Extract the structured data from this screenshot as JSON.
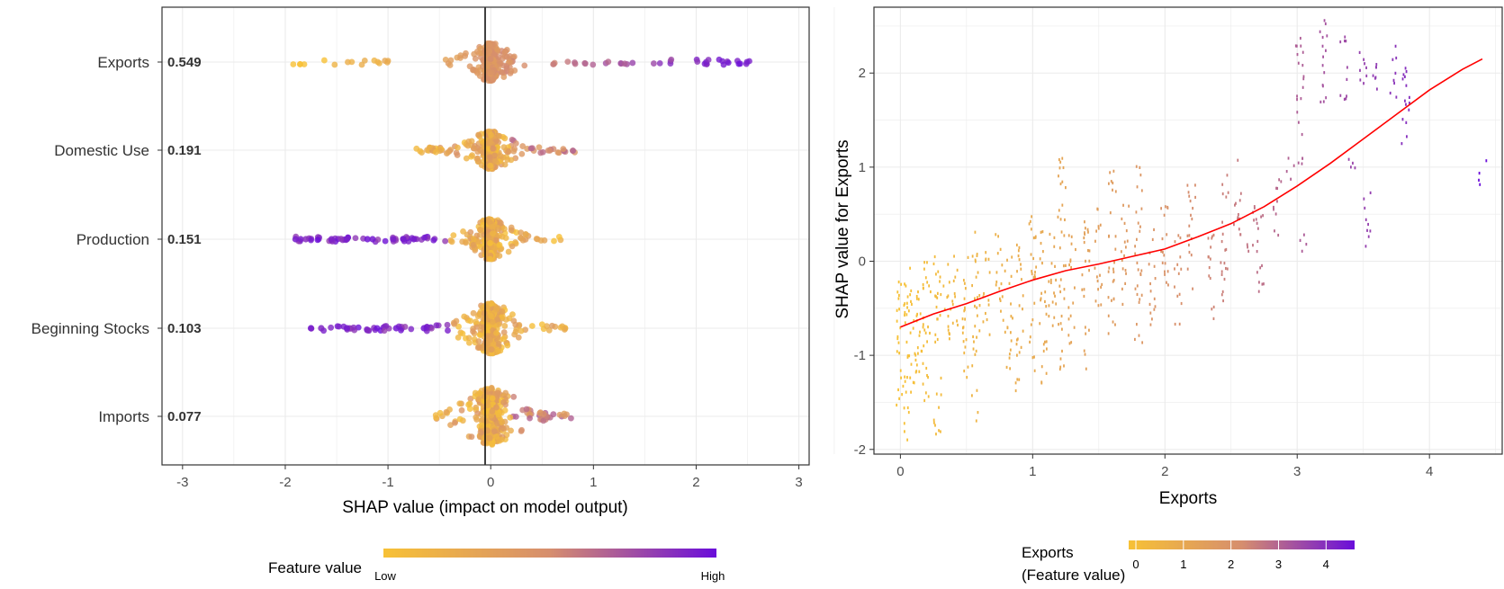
{
  "chart_data": [
    {
      "type": "scatter",
      "subtype": "shap-summary-beeswarm",
      "xlabel": "SHAP value (impact on model output)",
      "xlim": [
        -3,
        3
      ],
      "xticks": [
        "-3",
        "-2",
        "-1",
        "0",
        "1",
        "2",
        "3"
      ],
      "features": [
        {
          "name": "Exports",
          "importance": "0.549",
          "min": -1.95,
          "max": 2.6,
          "low_side": "negative",
          "spread": 1.0
        },
        {
          "name": "Domestic Use",
          "importance": "0.191",
          "min": -0.75,
          "max": 0.82,
          "low_side": "mixed",
          "spread": 1.0
        },
        {
          "name": "Production",
          "importance": "0.151",
          "min": -1.9,
          "max": 0.7,
          "low_side": "positive",
          "spread": 1.1
        },
        {
          "name": "Beginning Stocks",
          "importance": "0.103",
          "min": -1.75,
          "max": 0.82,
          "low_side": "positive",
          "spread": 1.4
        },
        {
          "name": "Imports",
          "importance": "0.077",
          "min": -0.55,
          "max": 0.8,
          "low_side": "mixed",
          "spread": 2.0
        }
      ],
      "outliers": {
        "Production": [
          -1.9,
          -1.85,
          -1.8,
          -1.55,
          -1.4,
          -1.2,
          -1.15,
          -0.95,
          -0.85,
          -0.75
        ],
        "Beginning Stocks": [
          -1.75,
          -1.65,
          -1.4,
          -0.92,
          -0.65
        ]
      },
      "legend": {
        "title": "Feature value",
        "low": "Low",
        "high": "High",
        "placement": "bottom"
      },
      "colors": {
        "low": "#f7c136",
        "mid": "#d68e6e",
        "high": "#6a0dda"
      },
      "grid": true
    },
    {
      "type": "scatter",
      "subtype": "shap-dependence",
      "xlabel": "Exports",
      "ylabel": "SHAP value for Exports",
      "xlim": [
        -0.2,
        4.55
      ],
      "ylim": [
        -2.05,
        2.7
      ],
      "xticks": [
        "0",
        "1",
        "2",
        "3",
        "4"
      ],
      "yticks": [
        "-2",
        "-1",
        "0",
        "1",
        "2"
      ],
      "trend": {
        "x": [
          0,
          0.25,
          0.5,
          0.75,
          1.0,
          1.25,
          1.5,
          1.75,
          2.0,
          2.25,
          2.5,
          2.75,
          3.0,
          3.25,
          3.5,
          3.75,
          4.0,
          4.25,
          4.4
        ],
        "y": [
          -0.7,
          -0.56,
          -0.45,
          -0.32,
          -0.2,
          -0.1,
          -0.03,
          0.05,
          0.13,
          0.26,
          0.4,
          0.58,
          0.8,
          1.04,
          1.3,
          1.56,
          1.82,
          2.04,
          2.15
        ],
        "color": "#ff0000"
      },
      "clusters": [
        {
          "x": 0.0,
          "ymin": -1.6,
          "ymax": 0.0
        },
        {
          "x": 0.05,
          "ymin": -1.9,
          "ymax": 0.05
        },
        {
          "x": 0.1,
          "ymin": -1.4,
          "ymax": 0.05
        },
        {
          "x": 0.15,
          "ymin": -1.2,
          "ymax": 0.05
        },
        {
          "x": 0.2,
          "ymin": -1.5,
          "ymax": 0.0
        },
        {
          "x": 0.28,
          "ymin": -1.9,
          "ymax": 0.08
        },
        {
          "x": 0.35,
          "ymin": -0.9,
          "ymax": 0.05
        },
        {
          "x": 0.42,
          "ymin": -0.7,
          "ymax": 0.1
        },
        {
          "x": 0.5,
          "ymin": -1.3,
          "ymax": 0.1
        },
        {
          "x": 0.57,
          "ymin": -1.7,
          "ymax": 0.35
        },
        {
          "x": 0.65,
          "ymin": -0.8,
          "ymax": 0.1
        },
        {
          "x": 0.75,
          "ymin": -0.8,
          "ymax": 0.3
        },
        {
          "x": 0.82,
          "ymin": -1.2,
          "ymax": 0.1
        },
        {
          "x": 0.9,
          "ymin": -1.4,
          "ymax": 0.25
        },
        {
          "x": 1.0,
          "ymin": -1.2,
          "ymax": 0.5
        },
        {
          "x": 1.08,
          "ymin": -1.3,
          "ymax": 0.35
        },
        {
          "x": 1.15,
          "ymin": -0.9,
          "ymax": 0.3
        },
        {
          "x": 1.22,
          "ymin": -1.2,
          "ymax": 1.15
        },
        {
          "x": 1.3,
          "ymin": -0.9,
          "ymax": 0.3
        },
        {
          "x": 1.4,
          "ymin": -1.2,
          "ymax": 0.45
        },
        {
          "x": 1.5,
          "ymin": -0.6,
          "ymax": 0.6
        },
        {
          "x": 1.6,
          "ymin": -0.9,
          "ymax": 1.0
        },
        {
          "x": 1.7,
          "ymin": -0.6,
          "ymax": 0.6
        },
        {
          "x": 1.8,
          "ymin": -0.9,
          "ymax": 1.1
        },
        {
          "x": 1.9,
          "ymin": -0.7,
          "ymax": 0.4
        },
        {
          "x": 2.0,
          "ymin": -0.5,
          "ymax": 0.7
        },
        {
          "x": 2.1,
          "ymin": -0.7,
          "ymax": 0.3
        },
        {
          "x": 2.2,
          "ymin": -0.4,
          "ymax": 0.85
        },
        {
          "x": 2.35,
          "ymin": -0.7,
          "ymax": 0.3
        },
        {
          "x": 2.45,
          "ymin": -0.5,
          "ymax": 0.95
        },
        {
          "x": 2.55,
          "ymin": 0.2,
          "ymax": 1.15
        },
        {
          "x": 2.65,
          "ymin": 0.1,
          "ymax": 0.7
        },
        {
          "x": 2.72,
          "ymin": -0.4,
          "ymax": 0.6
        },
        {
          "x": 2.85,
          "ymin": 0.2,
          "ymax": 0.9
        },
        {
          "x": 2.95,
          "ymin": 0.8,
          "ymax": 1.1
        },
        {
          "x": 3.02,
          "ymin": 0.95,
          "ymax": 2.45
        },
        {
          "x": 3.05,
          "ymin": 0.1,
          "ymax": 0.3
        },
        {
          "x": 3.2,
          "ymin": 1.5,
          "ymax": 2.6
        },
        {
          "x": 3.35,
          "ymin": 1.7,
          "ymax": 2.4
        },
        {
          "x": 3.42,
          "ymin": 0.9,
          "ymax": 1.1
        },
        {
          "x": 3.5,
          "ymin": 1.7,
          "ymax": 2.3
        },
        {
          "x": 3.53,
          "ymin": 0.15,
          "ymax": 0.8
        },
        {
          "x": 3.6,
          "ymin": 1.8,
          "ymax": 2.3
        },
        {
          "x": 3.72,
          "ymin": 1.7,
          "ymax": 2.3
        },
        {
          "x": 3.82,
          "ymin": 1.25,
          "ymax": 2.3
        },
        {
          "x": 4.4,
          "ymin": 0.8,
          "ymax": 1.1
        }
      ],
      "legend": {
        "title_line1": "Exports",
        "title_line2": "(Feature value)",
        "ticks": [
          "0",
          "1",
          "2",
          "3",
          "4"
        ],
        "placement": "bottom"
      },
      "colors": {
        "low": "#f7c136",
        "mid": "#d68e6e",
        "high": "#6a0dda"
      },
      "grid": true
    }
  ]
}
